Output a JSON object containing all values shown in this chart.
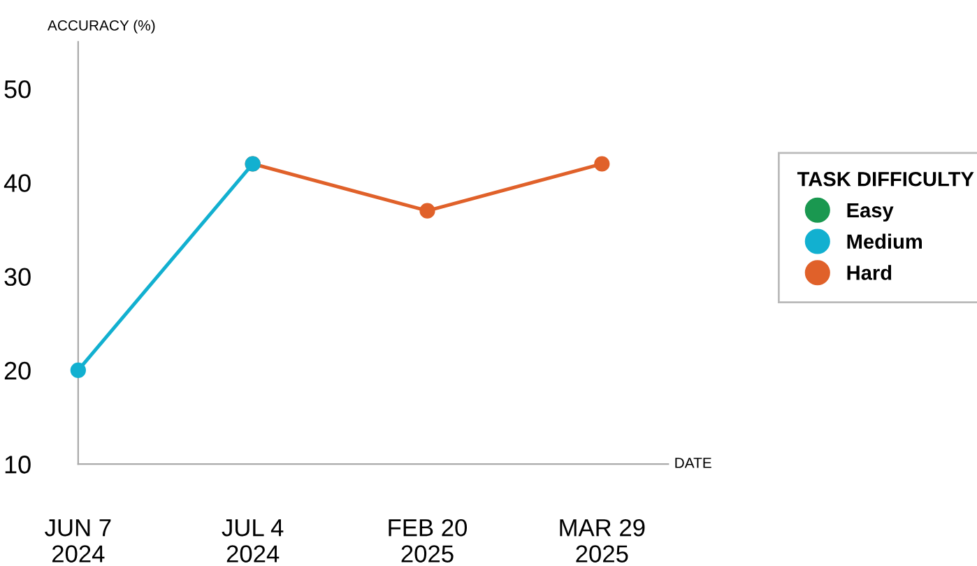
{
  "chart_data": {
    "type": "line",
    "ylabel": "ACCURACY (%)",
    "xlabel": "DATE",
    "legend_title": "TASK DIFFICULTY",
    "categories": [
      "JUN 7\n2024",
      "JUL 4\n2024",
      "FEB 20\n2025",
      "MAR 29\n2025"
    ],
    "series": [
      {
        "name": "Easy",
        "color": "#1a9850",
        "values": [
          null,
          null,
          null,
          null
        ]
      },
      {
        "name": "Medium",
        "color": "#12b0d0",
        "values": [
          20,
          42,
          null,
          null
        ]
      },
      {
        "name": "Hard",
        "color": "#e0612a",
        "values": [
          null,
          42,
          37,
          42
        ]
      }
    ],
    "ylim": [
      10,
      55
    ],
    "yticks": [
      10,
      20,
      30,
      40,
      50
    ],
    "grid": false,
    "legend": "right",
    "marker": "circle",
    "line_style": "solid"
  }
}
